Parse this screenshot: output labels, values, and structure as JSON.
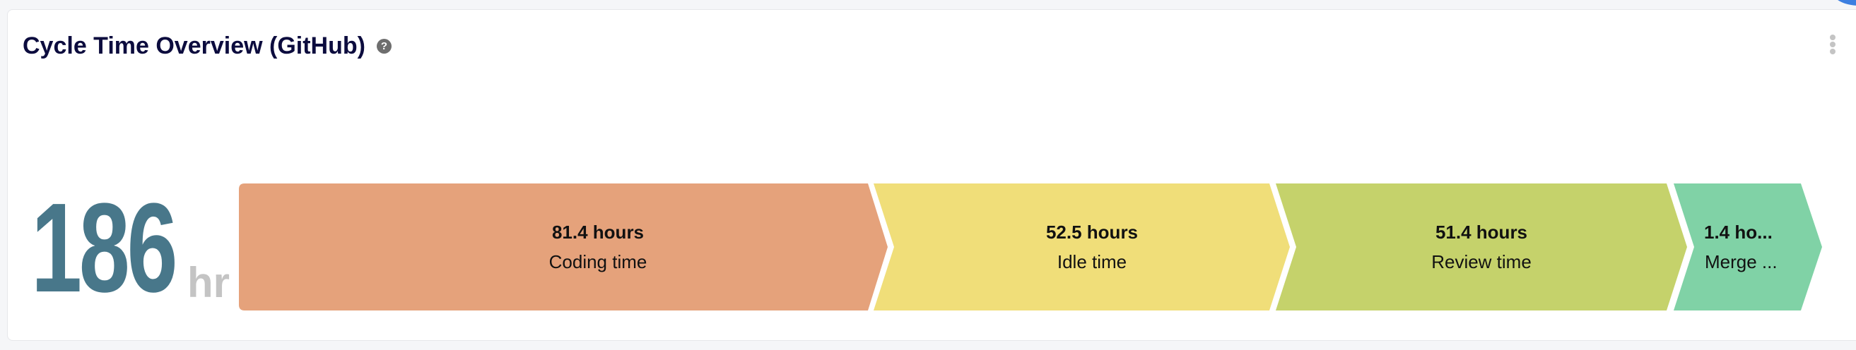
{
  "widget": {
    "title": "Cycle Time Overview (GitHub)",
    "help_icon": "question-circle-icon",
    "menu_icon": "vertical-ellipsis-icon",
    "total_value": "186",
    "total_unit": "hr",
    "stages": [
      {
        "value": "81.4 hours",
        "label": "Coding time",
        "hours": 81.4,
        "color": "#e5a27b"
      },
      {
        "value": "52.5 hours",
        "label": "Idle time",
        "hours": 52.5,
        "color": "#f0de79"
      },
      {
        "value": "51.4 hours",
        "label": "Review time",
        "hours": 51.4,
        "color": "#c5d26b"
      },
      {
        "value": "1.4 ho...",
        "label": "Merge ...",
        "hours": 1.4,
        "color": "#80d2a6"
      }
    ]
  }
}
